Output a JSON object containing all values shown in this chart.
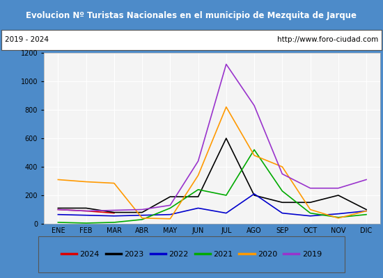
{
  "title": "Evolucion Nº Turistas Nacionales en el municipio de Mezquita de Jarque",
  "subtitle_left": "2019 - 2024",
  "subtitle_right": "http://www.foro-ciudad.com",
  "title_bgcolor": "#4d8bc9",
  "title_color": "white",
  "months": [
    "ENE",
    "FEB",
    "MAR",
    "ABR",
    "MAY",
    "JUN",
    "JUL",
    "AGO",
    "SEP",
    "OCT",
    "NOV",
    "DIC"
  ],
  "ylim": [
    0,
    1200
  ],
  "yticks": [
    0,
    200,
    400,
    600,
    800,
    1000,
    1200
  ],
  "series": {
    "2024": {
      "color": "#dd0000",
      "data": [
        100,
        90,
        75,
        null,
        null,
        null,
        null,
        null,
        null,
        null,
        null,
        null
      ]
    },
    "2023": {
      "color": "#000000",
      "data": [
        110,
        110,
        80,
        80,
        190,
        190,
        600,
        200,
        150,
        150,
        200,
        100
      ]
    },
    "2022": {
      "color": "#0000cc",
      "data": [
        65,
        60,
        55,
        60,
        65,
        110,
        75,
        210,
        75,
        55,
        70,
        90
      ]
    },
    "2021": {
      "color": "#00aa00",
      "data": [
        10,
        5,
        10,
        30,
        110,
        240,
        200,
        520,
        230,
        75,
        45,
        65
      ]
    },
    "2020": {
      "color": "#ff9900",
      "data": [
        310,
        295,
        285,
        40,
        35,
        340,
        820,
        480,
        400,
        100,
        40,
        90
      ]
    },
    "2019": {
      "color": "#9933cc",
      "data": [
        100,
        90,
        95,
        100,
        130,
        440,
        1120,
        830,
        350,
        250,
        250,
        310
      ]
    }
  },
  "legend_order": [
    "2024",
    "2023",
    "2022",
    "2021",
    "2020",
    "2019"
  ],
  "outer_color": "#4d8bc9",
  "plot_bg_color": "#f4f4f4",
  "grid_color": "#ffffff"
}
